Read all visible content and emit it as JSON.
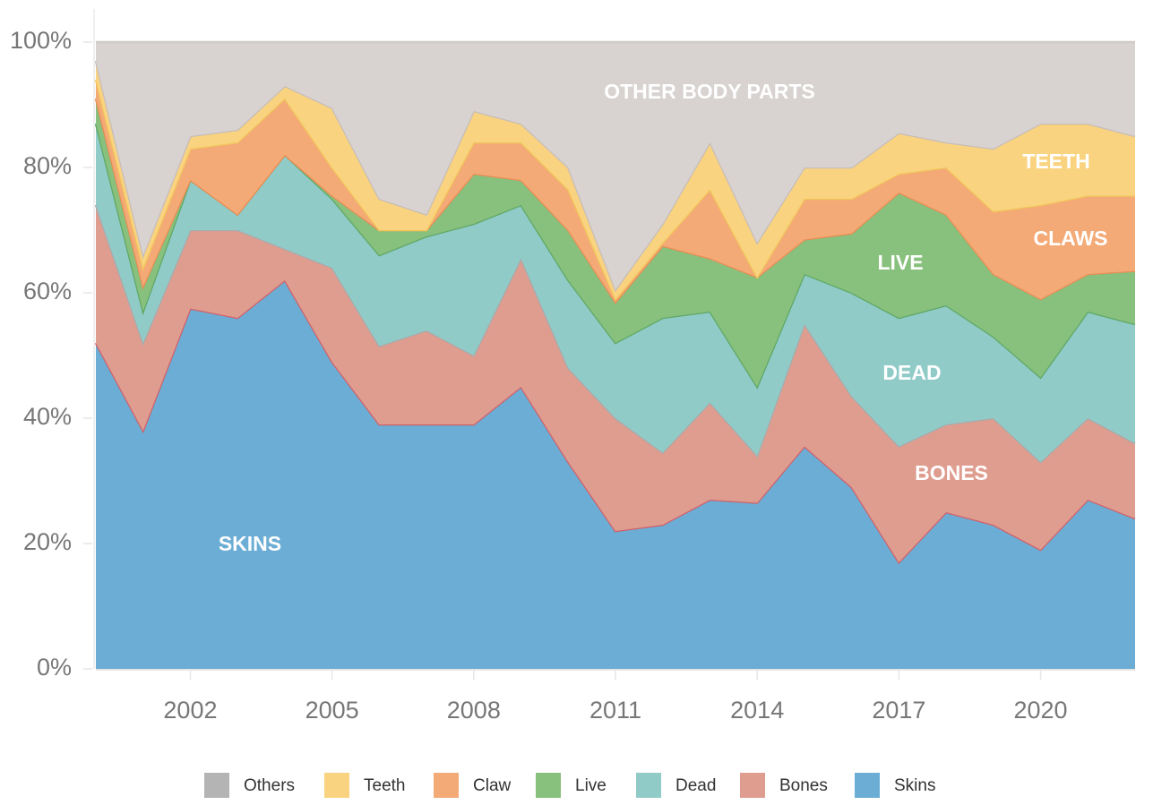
{
  "chart_data": {
    "type": "area",
    "x": [
      2000,
      2001,
      2002,
      2003,
      2004,
      2005,
      2006,
      2007,
      2008,
      2009,
      2010,
      2011,
      2012,
      2013,
      2014,
      2015,
      2016,
      2017,
      2018,
      2019,
      2020,
      2021,
      2022
    ],
    "series": [
      {
        "name": "Skins",
        "color": "#6badd5",
        "line": "#d0616a",
        "values": [
          52,
          38,
          57.5,
          56,
          62,
          49,
          39,
          39,
          39,
          45,
          33,
          22,
          23,
          27,
          26.5,
          35.5,
          29,
          17,
          25,
          23,
          19,
          27,
          24
        ]
      },
      {
        "name": "Bones",
        "color": "#df9d90",
        "line": "#aaa9a9",
        "values": [
          22,
          14,
          12.5,
          14,
          5,
          15,
          12.5,
          15,
          11,
          20.5,
          15,
          18,
          11.5,
          15.5,
          7.5,
          19.5,
          14.5,
          18.5,
          14,
          17,
          14,
          13,
          12
        ]
      },
      {
        "name": "Dead",
        "color": "#90cbc8",
        "line": "#5fa865",
        "values": [
          13,
          5,
          8,
          2.5,
          15,
          11,
          14.5,
          15,
          21,
          8.5,
          14,
          12,
          21.5,
          14.5,
          11,
          8,
          16.5,
          20.5,
          19,
          13,
          13.5,
          17,
          19
        ]
      },
      {
        "name": "Live",
        "color": "#88c07d",
        "line": "#e98d55",
        "values": [
          4,
          4,
          0,
          0,
          0,
          0.5,
          4,
          1,
          8,
          4,
          8,
          6.5,
          11.5,
          8.5,
          17.5,
          5.5,
          9.5,
          20,
          14.5,
          10,
          12.5,
          6,
          8.5
        ]
      },
      {
        "name": "Claw",
        "color": "#f4aa76",
        "line": "#f1c55a",
        "values": [
          3,
          3,
          5,
          11.5,
          9,
          4.5,
          0,
          0,
          5,
          6,
          6.5,
          0.5,
          0.5,
          11,
          0,
          6.5,
          5.5,
          3,
          7.5,
          10,
          15,
          12.5,
          12
        ]
      },
      {
        "name": "Teeth",
        "color": "#f9d37f",
        "line": "#c7bdb9",
        "values": [
          3,
          2,
          2,
          2,
          2,
          9.5,
          5,
          2.5,
          5,
          3,
          3.5,
          1.5,
          3,
          7.5,
          5.5,
          5,
          5,
          6.5,
          4,
          10,
          13,
          11.5,
          9.5
        ]
      },
      {
        "name": "Others",
        "color": "#d8d3d1",
        "legend_color": "#b4b4b4",
        "line": "#d0cac8",
        "values": [
          3,
          34,
          15,
          14,
          7,
          10.5,
          25,
          27.5,
          11,
          13,
          20,
          39.5,
          29,
          16,
          32,
          20,
          20,
          14.5,
          16,
          17,
          13,
          13,
          15
        ]
      }
    ],
    "legend_order": [
      "Others",
      "Teeth",
      "Claw",
      "Live",
      "Dead",
      "Bones",
      "Skins"
    ],
    "annotations": [
      "OTHER BODY PARTS",
      "TEETH",
      "CLAWS",
      "LIVE",
      "DEAD",
      "BONES",
      "SKINS"
    ],
    "xlim": [
      2000,
      2022
    ],
    "xticks": [
      2002,
      2005,
      2008,
      2011,
      2014,
      2017,
      2020
    ],
    "ylim": [
      0,
      100
    ],
    "yticks": [
      {
        "value": 0,
        "label": "0%"
      },
      {
        "value": 20,
        "label": "20%"
      },
      {
        "value": 40,
        "label": "40%"
      },
      {
        "value": 60,
        "label": "60%"
      },
      {
        "value": 80,
        "label": "80%"
      },
      {
        "value": 100,
        "label": "100%"
      }
    ]
  }
}
